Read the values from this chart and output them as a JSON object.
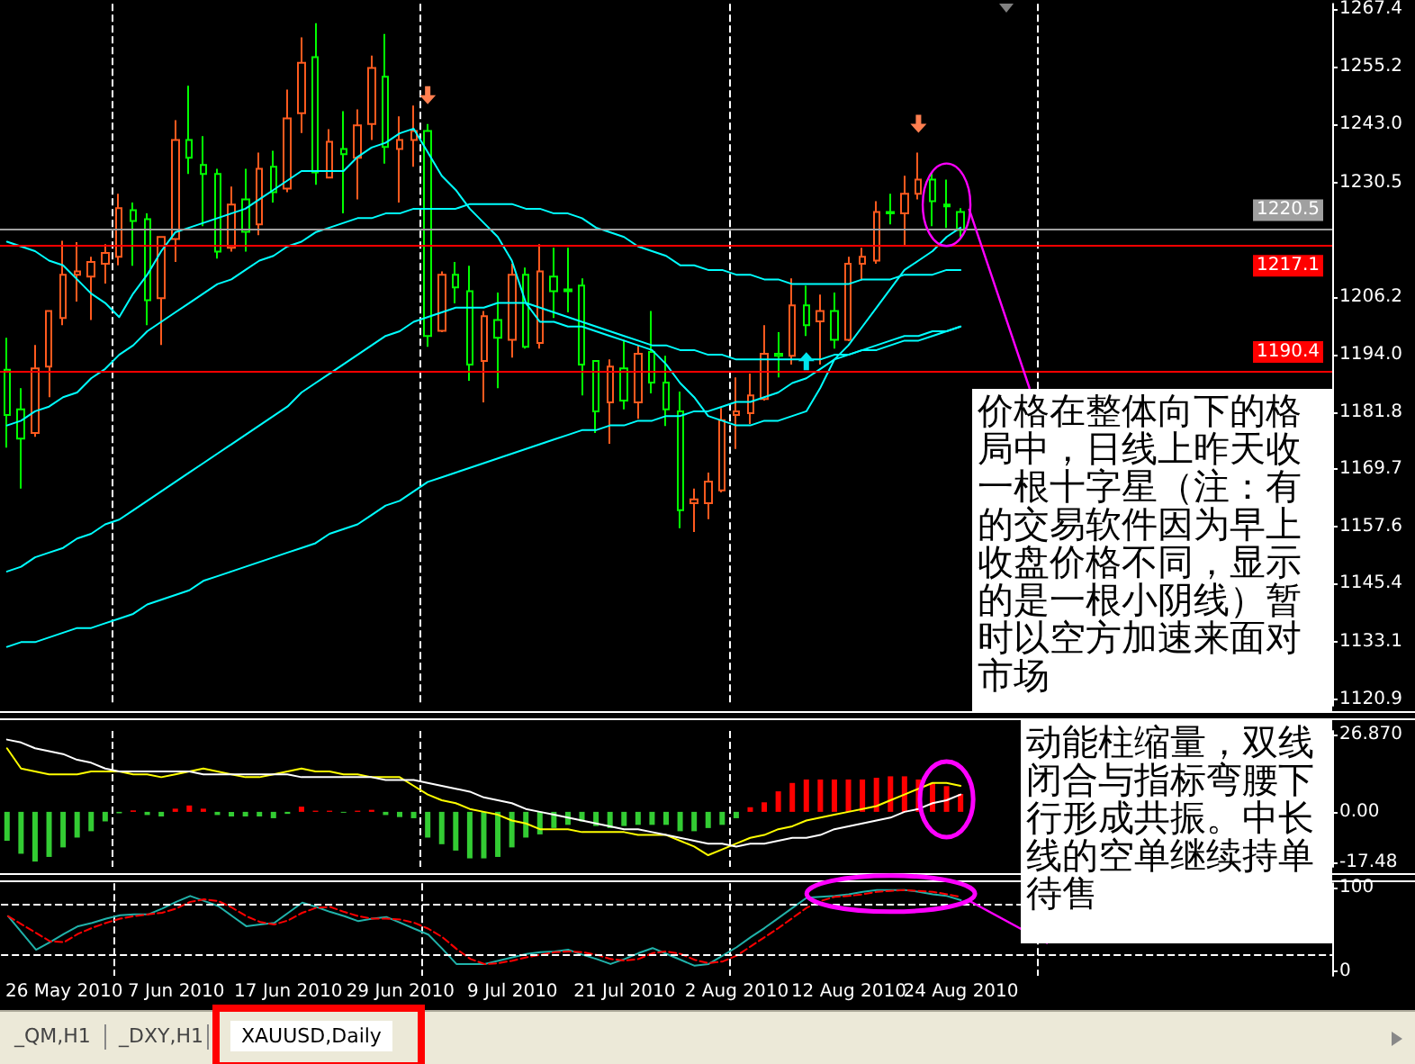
{
  "chart_data": [
    {
      "type": "candlestick",
      "categories": [
        null,
        null,
        null,
        null,
        "26 May 2010",
        null,
        null,
        null,
        null,
        null,
        null,
        null,
        "7 Jun 2010",
        null,
        null,
        null,
        null,
        null,
        null,
        null,
        "17 Jun 2010",
        null,
        null,
        null,
        null,
        null,
        null,
        null,
        "29 Jun 2010",
        null,
        null,
        null,
        null,
        null,
        null,
        null,
        "9 Jul 2010",
        null,
        null,
        null,
        null,
        null,
        null,
        null,
        "21 Jul 2010",
        null,
        null,
        null,
        null,
        null,
        null,
        null,
        "2 Aug 2010",
        null,
        null,
        null,
        null,
        null,
        null,
        null,
        "12 Aug 2010",
        null,
        null,
        null,
        null,
        null,
        null,
        null,
        "24 Aug 2010",
        null,
        null,
        null,
        null,
        null,
        null,
        null,
        null,
        null,
        null,
        null,
        null,
        null,
        null,
        null,
        null,
        null,
        null,
        null,
        null,
        null,
        null,
        null,
        null,
        null,
        null
      ],
      "series": [
        {
          "ohlc": [
            [
              1190.8,
              1197.6,
              1174.3,
              1181.2
            ],
            [
              1182.4,
              1186.9,
              1165.6,
              1176.2
            ],
            [
              1177.4,
              1196.1,
              1176.6,
              1191.1
            ],
            [
              1191.5,
              1203.3,
              1185.0,
              1203.3
            ],
            [
              1201.8,
              1218.2,
              1200.3,
              1211.0
            ],
            [
              1211.0,
              1217.9,
              1205.3,
              1211.7
            ],
            [
              1210.6,
              1214.8,
              1201.4,
              1213.7
            ],
            [
              1213.3,
              1217.5,
              1209.1,
              1215.6
            ],
            [
              1214.8,
              1228.2,
              1213.0,
              1225.1
            ],
            [
              1224.7,
              1226.3,
              1212.9,
              1222.4
            ],
            [
              1222.8,
              1224.0,
              1200.3,
              1205.6
            ],
            [
              1206.0,
              1219.0,
              1196.1,
              1219.0
            ],
            [
              1218.6,
              1243.8,
              1213.7,
              1239.6
            ],
            [
              1239.6,
              1251.1,
              1232.4,
              1235.8
            ],
            [
              1234.3,
              1240.4,
              1221.3,
              1232.4
            ],
            [
              1232.4,
              1233.5,
              1214.4,
              1215.9
            ],
            [
              1216.7,
              1229.7,
              1215.9,
              1225.9
            ],
            [
              1227.0,
              1233.5,
              1215.9,
              1220.1
            ],
            [
              1221.7,
              1236.9,
              1219.4,
              1233.5
            ],
            [
              1233.9,
              1237.3,
              1226.3,
              1228.5
            ],
            [
              1229.3,
              1250.3,
              1228.5,
              1244.2
            ],
            [
              1245.3,
              1261.4,
              1241.1,
              1256.0
            ],
            [
              1257.2,
              1264.4,
              1230.1,
              1232.7
            ],
            [
              1231.6,
              1241.9,
              1231.6,
              1239.2
            ],
            [
              1237.7,
              1245.7,
              1224.0,
              1236.6
            ],
            [
              1235.8,
              1246.1,
              1227.0,
              1242.7
            ],
            [
              1243.0,
              1257.5,
              1239.6,
              1254.9
            ],
            [
              1253.0,
              1262.1,
              1234.6,
              1238.1
            ],
            [
              1237.7,
              1244.6,
              1226.3,
              1239.6
            ],
            [
              1239.6,
              1246.9,
              1233.9,
              1241.5
            ],
            [
              1241.5,
              1243.0,
              1195.7,
              1198.0
            ],
            [
              1199.1,
              1211.7,
              1198.8,
              1211.0
            ],
            [
              1211.0,
              1213.7,
              1204.9,
              1208.3
            ],
            [
              1207.5,
              1212.9,
              1188.5,
              1191.9
            ],
            [
              1192.7,
              1203.3,
              1183.9,
              1202.2
            ],
            [
              1201.4,
              1207.2,
              1186.9,
              1197.6
            ],
            [
              1197.2,
              1213.3,
              1193.4,
              1211.0
            ],
            [
              1211.0,
              1212.5,
              1195.3,
              1195.7
            ],
            [
              1196.5,
              1217.5,
              1195.3,
              1211.7
            ],
            [
              1210.6,
              1216.7,
              1201.8,
              1207.5
            ],
            [
              1207.9,
              1216.7,
              1203.0,
              1207.5
            ],
            [
              1208.7,
              1210.2,
              1185.4,
              1191.9
            ],
            [
              1192.7,
              1192.7,
              1177.4,
              1182.0
            ],
            [
              1183.9,
              1193.0,
              1175.1,
              1191.5
            ],
            [
              1191.1,
              1197.2,
              1182.4,
              1184.3
            ],
            [
              1183.9,
              1196.1,
              1180.4,
              1194.2
            ],
            [
              1194.6,
              1203.3,
              1185.8,
              1188.1
            ],
            [
              1188.1,
              1193.8,
              1178.9,
              1182.4
            ],
            [
              1182.0,
              1186.2,
              1157.2,
              1161.0
            ],
            [
              1162.5,
              1165.6,
              1156.4,
              1163.3
            ],
            [
              1162.5,
              1169.0,
              1159.1,
              1167.1
            ],
            [
              1165.2,
              1182.7,
              1164.8,
              1180.1
            ],
            [
              1181.2,
              1189.2,
              1174.0,
              1182.0
            ],
            [
              1181.6,
              1190.0,
              1179.3,
              1185.4
            ],
            [
              1184.6,
              1200.3,
              1184.3,
              1194.2
            ],
            [
              1194.2,
              1198.8,
              1189.2,
              1193.8
            ],
            [
              1193.8,
              1210.2,
              1191.9,
              1204.5
            ],
            [
              1204.5,
              1208.7,
              1198.0,
              1200.3
            ],
            [
              1201.1,
              1206.8,
              1191.9,
              1203.3
            ],
            [
              1203.3,
              1207.2,
              1195.3,
              1197.2
            ],
            [
              1197.2,
              1214.8,
              1196.9,
              1213.3
            ],
            [
              1213.3,
              1216.7,
              1209.8,
              1214.8
            ],
            [
              1214.0,
              1226.6,
              1213.3,
              1224.3
            ],
            [
              1224.3,
              1228.2,
              1221.7,
              1224.0
            ],
            [
              1224.0,
              1232.0,
              1217.1,
              1228.2
            ],
            [
              1228.2,
              1236.9,
              1227.0,
              1231.2
            ],
            [
              1231.2,
              1232.7,
              1221.3,
              1226.6
            ],
            [
              1225.9,
              1231.2,
              1220.9,
              1225.5
            ],
            [
              1224.3,
              1225.1,
              1219.0,
              1220.5
            ],
            null,
            null,
            null,
            null,
            null,
            null,
            null,
            null,
            null,
            null,
            null,
            null,
            null,
            null,
            null,
            null,
            null,
            null,
            null,
            null,
            null,
            null,
            null,
            null,
            null,
            null
          ],
          "colors": [
            "#00ff00",
            "#00ff00",
            "#ff5a1e",
            "#ff5a1e",
            "#ff5a1e",
            "#ff5a1e",
            "#ff5a1e",
            "#ff5a1e",
            "#ff5a1e",
            "#00ff00",
            "#00ff00",
            "#ff5a1e",
            "#ff5a1e",
            "#00ff00",
            "#00ff00",
            "#00ff00",
            "#ff5a1e",
            "#00ff00",
            "#ff5a1e",
            "#00ff00",
            "#ff5a1e",
            "#ff5a1e",
            "#00ff00",
            "#ff5a1e",
            "#00ff00",
            "#ff5a1e",
            "#ff5a1e",
            "#00ff00",
            "#ff5a1e",
            "#ff5a1e",
            "#00ff00",
            "#ff5a1e",
            "#00ff00",
            "#00ff00",
            "#ff5a1e",
            "#00ff00",
            "#ff5a1e",
            "#00ff00",
            "#ff5a1e",
            "#00ff00",
            "#00ff00",
            "#00ff00",
            "#00ff00",
            "#ff5a1e",
            "#00ff00",
            "#ff5a1e",
            "#00ff00",
            "#00ff00",
            "#00ff00",
            "#ff5a1e",
            "#ff5a1e",
            "#ff5a1e",
            "#ff5a1e",
            "#ff5a1e",
            "#ff5a1e",
            "#00ff00",
            "#ff5a1e",
            "#00ff00",
            "#ff5a1e",
            "#00ff00",
            "#ff5a1e",
            "#ff5a1e",
            "#ff5a1e",
            "#00ff00",
            "#ff5a1e",
            "#ff5a1e",
            "#00ff00",
            "#00ff00",
            "#00ff00",
            null,
            null,
            null,
            null,
            null,
            null,
            null,
            null,
            null,
            null,
            null,
            null,
            null,
            null,
            null,
            null,
            null,
            null,
            null,
            null,
            null,
            null,
            null,
            null,
            null,
            null
          ]
        },
        {
          "type": "line",
          "color": "#00ffff",
          "values": [
            1218,
            1217,
            1216,
            1214,
            1213,
            1210,
            1207,
            1205,
            1202,
            1207,
            1211,
            1216,
            1220,
            1221,
            1222,
            1223,
            1224,
            1225,
            1227,
            1229,
            1231,
            1233,
            1233,
            1233,
            1233,
            1236,
            1238,
            1239,
            1241,
            1242,
            1237,
            1232,
            1229,
            1225,
            1222,
            1219,
            1214,
            1205,
            1201,
            1201,
            1200,
            1200,
            1199,
            1198,
            1197,
            1196,
            1195,
            1192,
            1188,
            1185,
            1181,
            1180,
            1179,
            1179,
            1180,
            1180,
            1181,
            1182,
            1187,
            1193,
            1196,
            1200,
            1204,
            1208,
            1212,
            1214,
            1216,
            1219,
            1221,
            null,
            null,
            null,
            null,
            null,
            null,
            null,
            null,
            null,
            null,
            null,
            null,
            null,
            null,
            null,
            null,
            null,
            null,
            null,
            null,
            null,
            null,
            null,
            null,
            null,
            null
          ]
        },
        {
          "type": "line",
          "color": "#00ffff",
          "values": [
            1179,
            1180,
            1182,
            1183,
            1185,
            1186,
            1189,
            1191,
            1194,
            1196,
            1199,
            1201,
            1203,
            1205,
            1207,
            1209,
            1210,
            1212,
            1214,
            1215,
            1217,
            1218,
            1220,
            1221,
            1222,
            1223,
            1223,
            1224,
            1224,
            1225,
            1225,
            1225,
            1225,
            1226,
            1226,
            1226,
            1226,
            1225,
            1225,
            1224,
            1224,
            1223,
            1221,
            1220,
            1219,
            1217,
            1216,
            1215,
            1213,
            1213,
            1212,
            1212,
            1211,
            1211,
            1210,
            1210,
            1209,
            1209,
            1209,
            1209,
            1209,
            1210,
            1210,
            1210,
            1211,
            1211,
            1211,
            1212,
            1212,
            null,
            null,
            null,
            null,
            null,
            null,
            null,
            null,
            null,
            null,
            null,
            null,
            null,
            null,
            null,
            null,
            null,
            null,
            null,
            null,
            null,
            null,
            null,
            null,
            null,
            null
          ]
        },
        {
          "type": "line",
          "color": "#00ffff",
          "values": [
            1148,
            1149,
            1151,
            1152,
            1153,
            1155,
            1156,
            1158,
            1159,
            1161,
            1163,
            1165,
            1167,
            1169,
            1171,
            1173,
            1175,
            1177,
            1179,
            1181,
            1183,
            1186,
            1188,
            1190,
            1192,
            1194,
            1196,
            1198,
            1199,
            1201,
            1202,
            1203,
            1204,
            1204,
            1204,
            1205,
            1205,
            1205,
            1204,
            1203,
            1202,
            1201,
            1200,
            1199,
            1198,
            1197,
            1196,
            1196,
            1195,
            1195,
            1194,
            1194,
            1193,
            1193,
            1193,
            1193,
            1193,
            1193,
            1193,
            1194,
            1194,
            1195,
            1195,
            1196,
            1197,
            1197,
            1198,
            1199,
            1200,
            null,
            null,
            null,
            null,
            null,
            null,
            null,
            null,
            null,
            null,
            null,
            null,
            null,
            null,
            null,
            null,
            null,
            null,
            null,
            null,
            null,
            null,
            null,
            null,
            null,
            null
          ]
        },
        {
          "type": "line",
          "color": "#00ffff",
          "values": [
            1132,
            1133,
            1133,
            1134,
            1135,
            1136,
            1136,
            1137,
            1138,
            1139,
            1141,
            1142,
            1143,
            1144,
            1146,
            1147,
            1148,
            1149,
            1150,
            1151,
            1152,
            1153,
            1154,
            1156,
            1157,
            1158,
            1160,
            1162,
            1163,
            1165,
            1167,
            1168,
            1169,
            1170,
            1171,
            1172,
            1173,
            1174,
            1175,
            1176,
            1177,
            1178,
            1178,
            1179,
            1179,
            1180,
            1180,
            1181,
            1181,
            1182,
            1182,
            1183,
            1184,
            1184,
            1185,
            1186,
            1188,
            1189,
            1191,
            1193,
            1194,
            1195,
            1196,
            1197,
            1198,
            1198,
            1199,
            1199,
            1200,
            null,
            null,
            null,
            null,
            null,
            null,
            null,
            null,
            null,
            null,
            null,
            null,
            null,
            null,
            null,
            null,
            null,
            null,
            null,
            null,
            null,
            null,
            null,
            null,
            null,
            null
          ]
        }
      ],
      "ylim": [
        1119.5,
        1268.5
      ],
      "yticks": [
        1120.9,
        1133.1,
        1145.4,
        1157.6,
        1169.7,
        1181.8,
        {
          "value": 1194,
          "label": "1194.0"
        },
        1206.2,
        1230.5,
        {
          "value": 1243,
          "label": "1243.0"
        },
        1255.2,
        1267.4
      ],
      "ref_lines": [
        {
          "axis": "y",
          "value": 1220.5,
          "label": "1220.5",
          "color": "#a0a0a0"
        },
        {
          "axis": "y",
          "value": 1217.1,
          "label": "1217.1",
          "color": "#ff0000"
        },
        {
          "axis": "y",
          "value": 1190.4,
          "label": "1190.4",
          "color": "#ff0000"
        }
      ],
      "annotations": [
        {
          "text": "价格在整体向下的格局中，日线上昨天收一根十字星（注：有的交易软件因为早上收盘价格不同，显示的是一根小阴线）暂时以空方加速来面对市场",
          "x": "24 Aug 2010",
          "y": 1225
        },
        "动能柱缩量，双线闭合与指标弯腰下行形成共振。中长线的空单继续持单待售"
      ],
      "grid": "x",
      "tick_labels": "y"
    },
    {
      "type": "bar",
      "categories": [
        null,
        null,
        null,
        null,
        "26 May 2010",
        null,
        null,
        null,
        null,
        null,
        null,
        null,
        "7 Jun 2010",
        null,
        null,
        null,
        null,
        null,
        null,
        null,
        "17 Jun 2010",
        null,
        null,
        null,
        null,
        null,
        null,
        null,
        "29 Jun 2010",
        null,
        null,
        null,
        null,
        null,
        null,
        null,
        "9 Jul 2010",
        null,
        null,
        null,
        null,
        null,
        null,
        null,
        "21 Jul 2010",
        null,
        null,
        null,
        null,
        null,
        null,
        null,
        "2 Aug 2010",
        null,
        null,
        null,
        null,
        null,
        null,
        null,
        "12 Aug 2010",
        null,
        null,
        null,
        null,
        null,
        null,
        null,
        "24 Aug 2010",
        null,
        null,
        null,
        null,
        null,
        null,
        null,
        null,
        null,
        null,
        null,
        null,
        null,
        null,
        null,
        null,
        null,
        null,
        null,
        null,
        null,
        null,
        null,
        null,
        null,
        null
      ],
      "series": [
        {
          "values": [
            -10.0,
            -14.5,
            -17.2,
            -15.6,
            -12.3,
            -8.9,
            -6.7,
            -3.3,
            -0.5,
            0.5,
            -1.1,
            -1.6,
            1.1,
            2.2,
            1.1,
            -1.1,
            -1.6,
            -1.6,
            -1.6,
            -2.2,
            -0.7,
            1.8,
            0.4,
            0.4,
            -0.3,
            0.4,
            0.7,
            -1.1,
            -1.8,
            -2.2,
            -8.9,
            -11.2,
            -13.4,
            -16.1,
            -16.1,
            -15.6,
            -12.3,
            -8.9,
            -7.8,
            -5.6,
            -4.5,
            -3.3,
            -4.9,
            -5.6,
            -4.9,
            -4.5,
            -4.5,
            -4.5,
            -6.7,
            -6.7,
            -5.6,
            -4.5,
            -2.2,
            1.6,
            3.3,
            7.1,
            10.0,
            11.2,
            11.2,
            11.2,
            11.2,
            11.2,
            11.8,
            12.3,
            12.3,
            11.2,
            10.0,
            8.9,
            6.2,
            null,
            null,
            null,
            null,
            null,
            null,
            null,
            null,
            null,
            null,
            null,
            null,
            null,
            null,
            null,
            null,
            null,
            null,
            null,
            null,
            null,
            null,
            null,
            null,
            null,
            null
          ],
          "colors": [
            "#33cc33",
            "#33cc33",
            "#33cc33",
            "#33cc33",
            "#33cc33",
            "#33cc33",
            "#33cc33",
            "#33cc33",
            "#33cc33",
            "#ff0000",
            "#33cc33",
            "#33cc33",
            "#ff0000",
            "#ff0000",
            "#ff0000",
            "#33cc33",
            "#33cc33",
            "#33cc33",
            "#33cc33",
            "#33cc33",
            "#33cc33",
            "#ff0000",
            "#ff0000",
            "#ff0000",
            "#33cc33",
            "#ff0000",
            "#ff0000",
            "#33cc33",
            "#33cc33",
            "#33cc33",
            "#33cc33",
            "#33cc33",
            "#33cc33",
            "#33cc33",
            "#33cc33",
            "#33cc33",
            "#33cc33",
            "#33cc33",
            "#33cc33",
            "#33cc33",
            "#33cc33",
            "#33cc33",
            "#33cc33",
            "#33cc33",
            "#33cc33",
            "#33cc33",
            "#33cc33",
            "#33cc33",
            "#33cc33",
            "#33cc33",
            "#33cc33",
            "#33cc33",
            "#33cc33",
            "#ff0000",
            "#ff0000",
            "#ff0000",
            "#ff0000",
            "#ff0000",
            "#ff0000",
            "#ff0000",
            "#ff0000",
            "#ff0000",
            "#ff0000",
            "#ff0000",
            "#ff0000",
            "#ff0000",
            "#ff0000",
            "#ff0000",
            "#ff0000",
            null,
            null,
            null,
            null,
            null,
            null,
            null,
            null,
            null,
            null,
            null,
            null,
            null,
            null,
            null,
            null,
            null,
            null,
            null,
            null,
            null,
            null,
            null,
            null,
            null,
            null
          ]
        },
        {
          "type": "line",
          "color": "#ffff00",
          "values": [
            22,
            15,
            14,
            13,
            13,
            13,
            14,
            14,
            14,
            13,
            13,
            12,
            13,
            14,
            15,
            14,
            13,
            12,
            12,
            13,
            14,
            15,
            14,
            14,
            13,
            13,
            12,
            12,
            12,
            9,
            6,
            4,
            3,
            1,
            0,
            -1,
            -3,
            -4,
            -6,
            -6,
            -6,
            -7,
            -7,
            -7,
            -7,
            -8,
            -8,
            -8,
            -10,
            -12,
            -15,
            -13,
            -11,
            -9,
            -8,
            -6,
            -5,
            -3,
            -2,
            -1,
            0,
            1,
            2,
            4,
            6,
            8,
            10,
            10,
            9,
            null,
            null,
            null,
            null,
            null,
            null,
            null,
            null,
            null,
            null,
            null,
            null,
            null,
            null,
            null,
            null,
            null,
            null,
            null,
            null,
            null,
            null,
            null,
            null,
            null,
            null
          ]
        },
        {
          "type": "line",
          "color": "#ffffff",
          "values": [
            25,
            24,
            22,
            21,
            20,
            18,
            17,
            15,
            14,
            14,
            14,
            14,
            14,
            14,
            13,
            13,
            13,
            13,
            13,
            13,
            13,
            12,
            12,
            12,
            12,
            12,
            12,
            11,
            11,
            11,
            10,
            9,
            8,
            7,
            5,
            4,
            3,
            1,
            0,
            -1,
            -2,
            -3,
            -4,
            -5,
            -6,
            -6,
            -7,
            -8,
            -9,
            -10,
            -11,
            -11,
            -12,
            -11,
            -11,
            -10,
            -9,
            -9,
            -8,
            -6,
            -5,
            -4,
            -3,
            -2,
            0,
            1,
            3,
            4,
            6,
            null,
            null,
            null,
            null,
            null,
            null,
            null,
            null,
            null,
            null,
            null,
            null,
            null,
            null,
            null,
            null,
            null,
            null,
            null,
            null,
            null,
            null,
            null,
            null,
            null,
            null
          ]
        }
      ],
      "ylim": [
        -19,
        28
      ],
      "yticks": [
        {
          "value": 26.87,
          "label": "26.870"
        },
        {
          "value": 0,
          "label": "0.00"
        },
        -17.48
      ],
      "grid": "x",
      "tick_labels": "y"
    },
    {
      "type": "line",
      "categories": [
        null,
        null,
        null,
        null,
        "26 May 2010",
        null,
        null,
        null,
        null,
        null,
        null,
        null,
        "7 Jun 2010",
        null,
        null,
        null,
        null,
        null,
        null,
        null,
        "17 Jun 2010",
        null,
        null,
        null,
        null,
        null,
        null,
        null,
        "29 Jun 2010",
        null,
        null,
        null,
        null,
        null,
        null,
        null,
        "9 Jul 2010",
        null,
        null,
        null,
        null,
        null,
        null,
        null,
        "21 Jul 2010",
        null,
        null,
        null,
        null,
        null,
        null,
        null,
        "2 Aug 2010",
        null,
        null,
        null,
        null,
        null,
        null,
        null,
        "12 Aug 2010",
        null,
        null,
        null,
        null,
        null,
        null,
        null,
        "24 Aug 2010",
        null,
        null,
        null,
        null,
        null,
        null,
        null,
        null,
        null,
        null,
        null,
        null,
        null,
        null,
        null,
        null,
        null,
        null,
        null,
        null,
        null,
        null,
        null,
        null,
        null,
        null
      ],
      "series": [
        {
          "color": "#20b2aa",
          "line_style": "solid",
          "values": [
            66,
            46,
            26,
            35,
            45,
            54,
            58,
            63,
            67,
            68,
            68,
            75,
            83,
            90,
            84,
            78,
            66,
            54,
            56,
            58,
            70,
            82,
            77,
            71,
            66,
            60,
            63,
            65,
            58,
            51,
            44,
            27,
            9,
            9,
            9,
            13,
            17,
            21,
            23,
            24,
            26,
            20,
            15,
            9,
            15,
            22,
            28,
            21,
            14,
            7,
            9,
            19,
            29,
            41,
            52,
            64,
            76,
            88,
            89,
            90,
            92,
            95,
            97,
            97,
            97,
            95,
            92,
            90,
            85,
            null,
            null,
            null,
            null,
            null,
            null,
            null,
            null,
            null,
            null,
            null,
            null,
            null,
            null,
            null,
            null,
            null,
            null,
            null,
            null,
            null,
            null,
            null,
            null,
            null,
            null
          ]
        },
        {
          "color": "#ff0000",
          "line_style": "dashed",
          "values": [
            66,
            56,
            46,
            36,
            35,
            45,
            52,
            58,
            63,
            66,
            68,
            70,
            75,
            83,
            86,
            84,
            76,
            66,
            59,
            56,
            61,
            70,
            76,
            77,
            71,
            66,
            63,
            63,
            62,
            58,
            51,
            41,
            27,
            15,
            9,
            10,
            13,
            17,
            20,
            23,
            24,
            23,
            20,
            15,
            13,
            15,
            22,
            24,
            21,
            14,
            10,
            12,
            19,
            30,
            41,
            52,
            64,
            76,
            84,
            89,
            90,
            92,
            95,
            96,
            97,
            96,
            95,
            92,
            89,
            null,
            null,
            null,
            null,
            null,
            null,
            null,
            null,
            null,
            null,
            null,
            null,
            null,
            null,
            null,
            null,
            null,
            null,
            null,
            null,
            null,
            null,
            null,
            null,
            null,
            null
          ]
        }
      ],
      "ylim": [
        -5,
        105
      ],
      "yticks": [
        0,
        100
      ],
      "ref_lines": [
        {
          "axis": "y",
          "value": 80,
          "color": "#ffffff",
          "line_style": "dashed"
        },
        {
          "axis": "y",
          "value": 20,
          "color": "#ffffff",
          "line_style": "dashed"
        }
      ],
      "annotations": [
        "_QM,H1",
        "_DXY,H1",
        "XAUUSD,Daily"
      ],
      "grid": "x"
    }
  ]
}
